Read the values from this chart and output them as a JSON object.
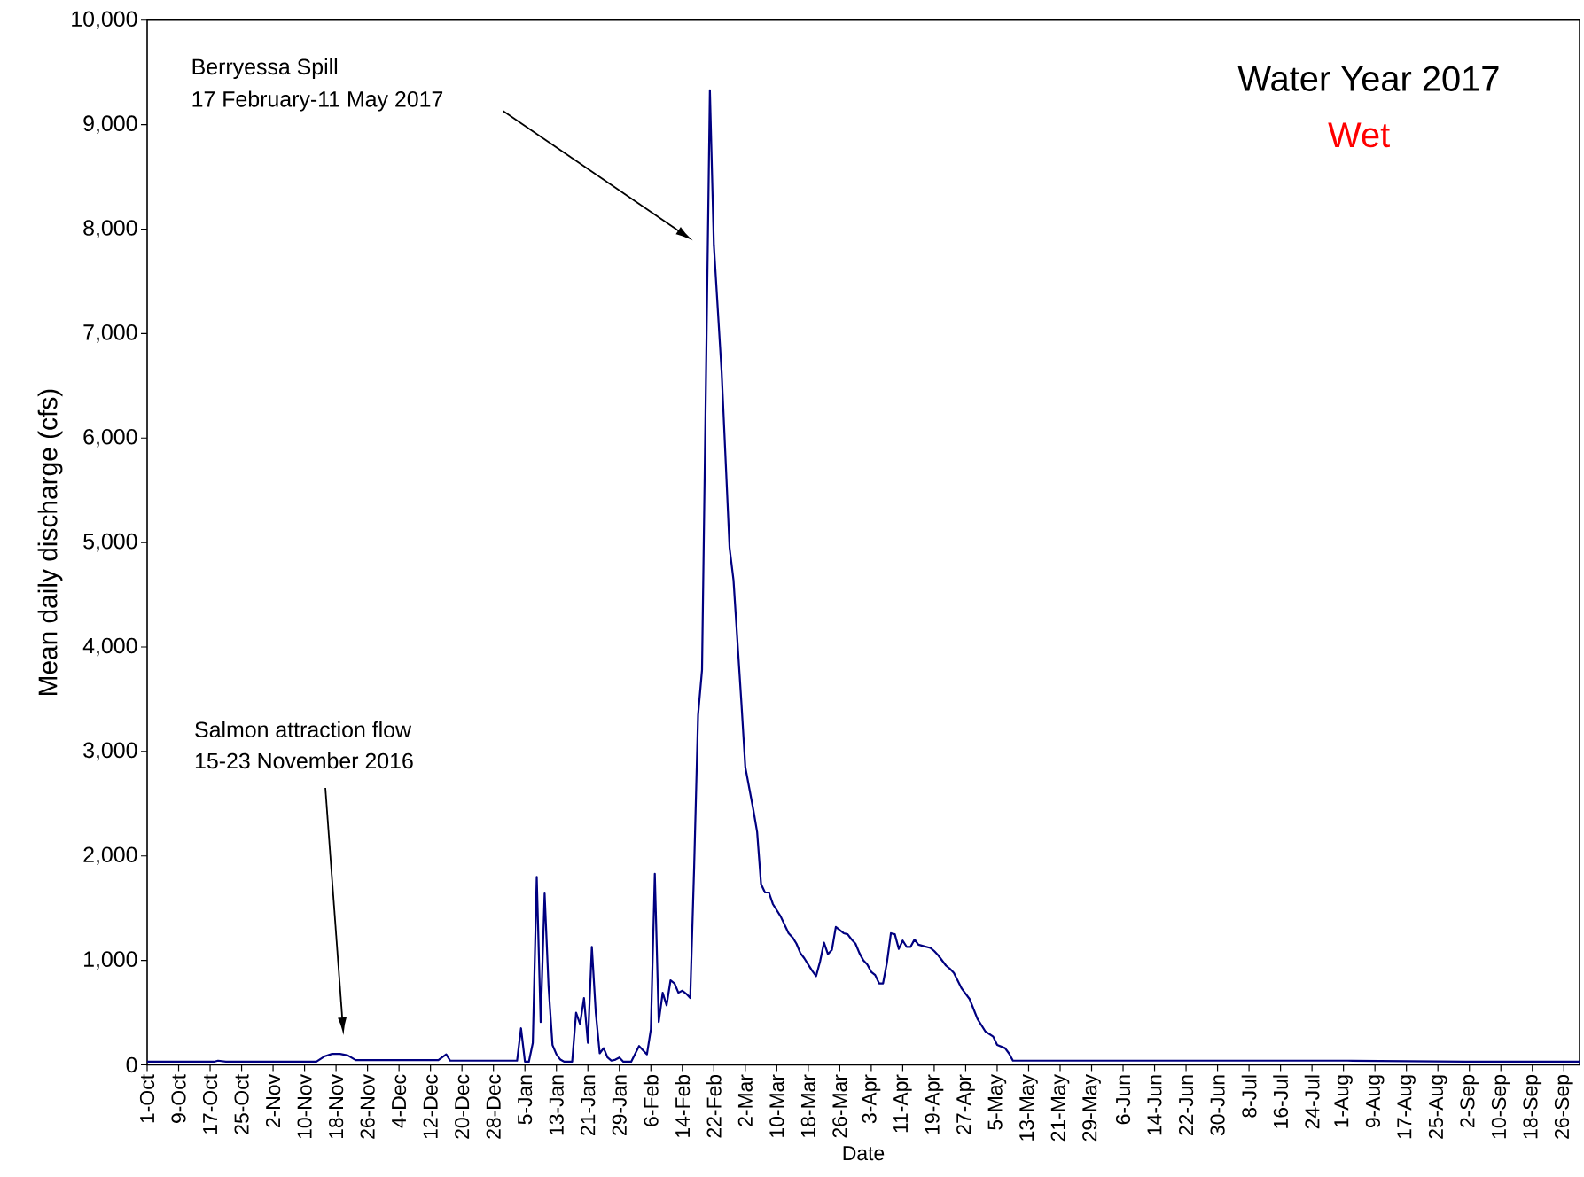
{
  "chart_data": {
    "type": "line",
    "title": "Water Year 2017",
    "subtitle": "Wet",
    "xlabel": "Date",
    "ylabel": "Mean daily discharge (cfs)",
    "annotations": [
      "Berryessa Spill",
      "17 February-11 May 2017",
      "Salmon attraction flow",
      "15-23 November 2016"
    ],
    "xlim": [
      "2016-10-01",
      "2017-09-30"
    ],
    "ylim": [
      0,
      10000
    ],
    "xticks": [
      {
        "value": "2016-10-01",
        "label": "1-Oct"
      },
      {
        "value": "2016-10-09",
        "label": "9-Oct"
      },
      {
        "value": "2016-10-17",
        "label": "17-Oct"
      },
      {
        "value": "2016-10-25",
        "label": "25-Oct"
      },
      {
        "value": "2016-11-02",
        "label": "2-Nov"
      },
      {
        "value": "2016-11-10",
        "label": "10-Nov"
      },
      {
        "value": "2016-11-18",
        "label": "18-Nov"
      },
      {
        "value": "2016-11-26",
        "label": "26-Nov"
      },
      {
        "value": "2016-12-04",
        "label": "4-Dec"
      },
      {
        "value": "2016-12-12",
        "label": "12-Dec"
      },
      {
        "value": "2016-12-20",
        "label": "20-Dec"
      },
      {
        "value": "2016-12-28",
        "label": "28-Dec"
      },
      {
        "value": "2017-01-05",
        "label": "5-Jan"
      },
      {
        "value": "2017-01-13",
        "label": "13-Jan"
      },
      {
        "value": "2017-01-21",
        "label": "21-Jan"
      },
      {
        "value": "2017-01-29",
        "label": "29-Jan"
      },
      {
        "value": "2017-02-06",
        "label": "6-Feb"
      },
      {
        "value": "2017-02-14",
        "label": "14-Feb"
      },
      {
        "value": "2017-02-22",
        "label": "22-Feb"
      },
      {
        "value": "2017-03-02",
        "label": "2-Mar"
      },
      {
        "value": "2017-03-10",
        "label": "10-Mar"
      },
      {
        "value": "2017-03-18",
        "label": "18-Mar"
      },
      {
        "value": "2017-03-26",
        "label": "26-Mar"
      },
      {
        "value": "2017-04-03",
        "label": "3-Apr"
      },
      {
        "value": "2017-04-11",
        "label": "11-Apr"
      },
      {
        "value": "2017-04-19",
        "label": "19-Apr"
      },
      {
        "value": "2017-04-27",
        "label": "27-Apr"
      },
      {
        "value": "2017-05-05",
        "label": "5-May"
      },
      {
        "value": "2017-05-13",
        "label": "13-May"
      },
      {
        "value": "2017-05-21",
        "label": "21-May"
      },
      {
        "value": "2017-05-29",
        "label": "29-May"
      },
      {
        "value": "2017-06-06",
        "label": "6-Jun"
      },
      {
        "value": "2017-06-14",
        "label": "14-Jun"
      },
      {
        "value": "2017-06-22",
        "label": "22-Jun"
      },
      {
        "value": "2017-06-30",
        "label": "30-Jun"
      },
      {
        "value": "2017-07-08",
        "label": "8-Jul"
      },
      {
        "value": "2017-07-16",
        "label": "16-Jul"
      },
      {
        "value": "2017-07-24",
        "label": "24-Jul"
      },
      {
        "value": "2017-08-01",
        "label": "1-Aug"
      },
      {
        "value": "2017-08-09",
        "label": "9-Aug"
      },
      {
        "value": "2017-08-17",
        "label": "17-Aug"
      },
      {
        "value": "2017-08-25",
        "label": "25-Aug"
      },
      {
        "value": "2017-09-02",
        "label": "2-Sep"
      },
      {
        "value": "2017-09-10",
        "label": "10-Sep"
      },
      {
        "value": "2017-09-18",
        "label": "18-Sep"
      },
      {
        "value": "2017-09-26",
        "label": "26-Sep"
      }
    ],
    "yticks": [
      0,
      {
        "value": 1000,
        "label": "1,000"
      },
      {
        "value": 2000,
        "label": "2,000"
      },
      {
        "value": 3000,
        "label": "3,000"
      },
      {
        "value": 4000,
        "label": "4,000"
      },
      {
        "value": 5000,
        "label": "5,000"
      },
      {
        "value": 6000,
        "label": "6,000"
      },
      {
        "value": 7000,
        "label": "7,000"
      },
      {
        "value": 8000,
        "label": "8,000"
      },
      {
        "value": 9000,
        "label": "9,000"
      },
      {
        "value": 10000,
        "label": "10,000"
      }
    ],
    "series": [
      {
        "color": "#000080",
        "x": [
          "2016-10-01",
          "2016-10-18",
          "2016-10-19",
          "2016-10-21",
          "2016-11-10",
          "2016-11-13",
          "2016-11-15",
          "2016-11-17",
          "2016-11-19",
          "2016-11-21",
          "2016-11-23",
          "2016-12-14",
          "2016-12-16",
          "2016-12-17",
          "2017-01-03",
          "2017-01-04",
          "2017-01-05",
          "2017-01-06",
          "2017-01-07",
          "2017-01-08",
          "2017-01-09",
          "2017-01-10",
          "2017-01-11",
          "2017-01-12",
          "2017-01-13",
          "2017-01-14",
          "2017-01-15",
          "2017-01-17",
          "2017-01-18",
          "2017-01-19",
          "2017-01-20",
          "2017-01-21",
          "2017-01-22",
          "2017-01-23",
          "2017-01-24",
          "2017-01-25",
          "2017-01-26",
          "2017-01-27",
          "2017-01-28",
          "2017-01-29",
          "2017-01-30",
          "2017-02-01",
          "2017-02-03",
          "2017-02-05",
          "2017-02-06",
          "2017-02-07",
          "2017-02-08",
          "2017-02-09",
          "2017-02-10",
          "2017-02-11",
          "2017-02-12",
          "2017-02-13",
          "2017-02-14",
          "2017-02-15",
          "2017-02-16",
          "2017-02-17",
          "2017-02-18",
          "2017-02-19",
          "2017-02-21",
          "2017-02-22",
          "2017-02-24",
          "2017-02-26",
          "2017-02-27",
          "2017-03-01",
          "2017-03-02",
          "2017-03-04",
          "2017-03-05",
          "2017-03-06",
          "2017-03-07",
          "2017-03-08",
          "2017-03-09",
          "2017-03-10",
          "2017-03-11",
          "2017-03-13",
          "2017-03-14",
          "2017-03-15",
          "2017-03-16",
          "2017-03-17",
          "2017-03-18",
          "2017-03-19",
          "2017-03-20",
          "2017-03-21",
          "2017-03-22",
          "2017-03-23",
          "2017-03-24",
          "2017-03-25",
          "2017-03-27",
          "2017-03-28",
          "2017-03-29",
          "2017-03-30",
          "2017-03-31",
          "2017-04-01",
          "2017-04-02",
          "2017-04-03",
          "2017-04-04",
          "2017-04-05",
          "2017-04-06",
          "2017-04-07",
          "2017-04-08",
          "2017-04-09",
          "2017-04-10",
          "2017-04-11",
          "2017-04-12",
          "2017-04-13",
          "2017-04-14",
          "2017-04-15",
          "2017-04-16",
          "2017-04-18",
          "2017-04-19",
          "2017-04-20",
          "2017-04-22",
          "2017-04-23",
          "2017-04-24",
          "2017-04-26",
          "2017-04-28",
          "2017-04-30",
          "2017-05-02",
          "2017-05-04",
          "2017-05-05",
          "2017-05-07",
          "2017-05-08",
          "2017-05-09",
          "2017-08-01",
          "2017-08-02",
          "2017-09-01",
          "2017-09-30"
        ],
        "values": [
          30,
          30,
          40,
          30,
          30,
          30,
          80,
          105,
          105,
          90,
          45,
          45,
          100,
          40,
          40,
          350,
          30,
          30,
          210,
          1800,
          410,
          1640,
          750,
          190,
          100,
          50,
          30,
          30,
          500,
          390,
          640,
          210,
          1130,
          500,
          110,
          160,
          70,
          40,
          50,
          70,
          30,
          30,
          180,
          100,
          340,
          1830,
          410,
          690,
          570,
          810,
          780,
          690,
          710,
          680,
          640,
          1900,
          3350,
          3780,
          9330,
          7850,
          6620,
          4950,
          4640,
          3470,
          2850,
          2450,
          2230,
          1730,
          1650,
          1650,
          1540,
          1480,
          1420,
          1260,
          1220,
          1160,
          1070,
          1020,
          960,
          900,
          850,
          990,
          1170,
          1060,
          1100,
          1320,
          1260,
          1250,
          1200,
          1160,
          1070,
          1000,
          960,
          890,
          860,
          780,
          780,
          980,
          1260,
          1250,
          1110,
          1190,
          1130,
          1130,
          1200,
          1150,
          1140,
          1120,
          1090,
          1050,
          950,
          920,
          880,
          730,
          630,
          440,
          320,
          270,
          190,
          160,
          110,
          40,
          40,
          40,
          30,
          30
        ]
      }
    ]
  }
}
